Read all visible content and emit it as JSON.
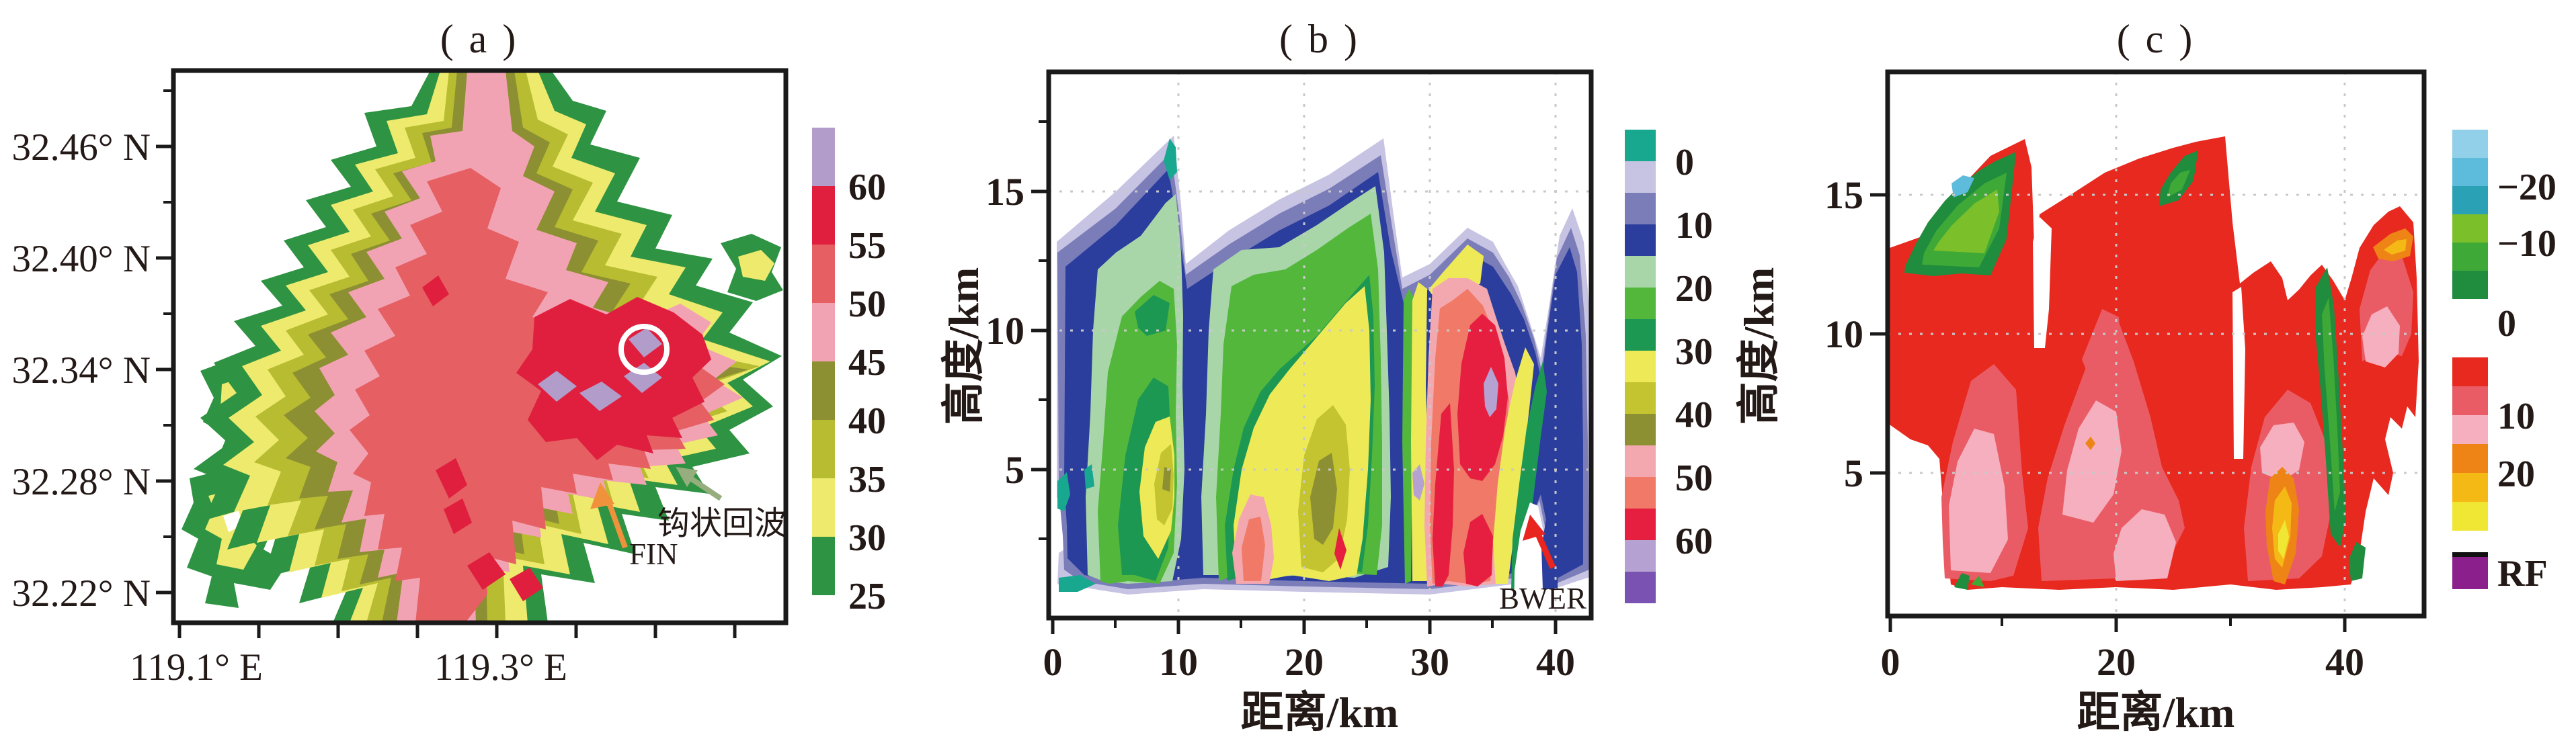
{
  "panels": {
    "a": {
      "title": "( a )",
      "y_ticks": [
        "32.46° N",
        "32.40° N",
        "32.34° N",
        "32.28° N",
        "32.22° N"
      ],
      "x_ticks": [
        "119.1° E",
        "119.3° E"
      ],
      "colorbar": {
        "labels": [
          "60",
          "55",
          "50",
          "45",
          "40",
          "35",
          "30",
          "25"
        ],
        "colors": [
          "#b29cca",
          "#e01f3e",
          "#e55f63",
          "#f2a3b3",
          "#8d8f33",
          "#b8bc30",
          "#eeea6e",
          "#2e9342"
        ]
      },
      "annotations": {
        "fin": "FIN",
        "hook_echo": "钩状回波",
        "fin_arrow_color": "#f0923c",
        "hook_arrow_color": "#96ad7d",
        "circle_color": "#ffffff"
      }
    },
    "b": {
      "title": "( b )",
      "y_label": "高度/km",
      "x_label": "距离/km",
      "y_ticks": [
        "15",
        "10",
        "5"
      ],
      "x_ticks": [
        "0",
        "10",
        "20",
        "30",
        "40"
      ],
      "colorbar": {
        "labels": [
          "0",
          "10",
          "20",
          "30",
          "40",
          "50",
          "60"
        ],
        "colors": [
          "#18a78f",
          "#c7c3e2",
          "#7b7db9",
          "#2b3d9d",
          "#a9d6a9",
          "#53b73c",
          "#1d9853",
          "#eeea57",
          "#c3c430",
          "#8d8f33",
          "#f3a8b0",
          "#f07a67",
          "#e61f40",
          "#b5a2d2",
          "#7a52b2"
        ]
      },
      "annotations": {
        "bwer": "BWER",
        "bwer_arrow_color": "#e8251f"
      }
    },
    "c": {
      "title": "( c )",
      "y_label": "高度/km",
      "x_label": "距离/km",
      "y_ticks": [
        "15",
        "10",
        "5"
      ],
      "x_ticks": [
        "0",
        "20",
        "40"
      ],
      "colorbar_negative": {
        "labels": [
          "−20",
          "−10",
          "0"
        ],
        "colors": [
          "#92cfe8",
          "#5dbbdc",
          "#2aa1b4",
          "#7bbf2b",
          "#3ea936",
          "#1f8c3e"
        ]
      },
      "colorbar_positive": {
        "labels": [
          "10",
          "20"
        ],
        "colors": [
          "#e8291f",
          "#ea5c65",
          "#f5afbe",
          "#ef8416",
          "#f5b916",
          "#f0e634"
        ]
      },
      "colorbar_rf": {
        "label": "RF",
        "colors": [
          "#8b1f8b"
        ]
      }
    }
  },
  "chart_data": [
    {
      "panel": "a",
      "type": "heatmap",
      "title": "( a )",
      "description": "Plan-view radar reflectivity contour map",
      "x_tick_labels": [
        "119.1°E",
        "119.3°E"
      ],
      "x_range_deg_E": [
        119.1,
        119.45
      ],
      "y_tick_labels": [
        "32.46°N",
        "32.40°N",
        "32.34°N",
        "32.28°N",
        "32.22°N"
      ],
      "y_range_deg_N": [
        32.2,
        32.5
      ],
      "color_levels": [
        25,
        30,
        35,
        40,
        45,
        50,
        55,
        60
      ],
      "legend_position": "right",
      "grid": false,
      "annotations": [
        "FIN marked by orange arrow near 119.33°E 32.26°N",
        "钩状回波 (hook echo) marked by olive-green arrow near 119.38°E 32.28°N",
        "white circle around >60 core near 119.36°E 32.35°N"
      ],
      "features": [
        "broad 25–45 echo mass with vertically elongated core",
        "55–60 cores east-center around 32.32–32.35°N and near the southern edge",
        ">60 (lavender) patches embedded in eastern red core",
        "scattered 25–35 cells on the western flank"
      ]
    },
    {
      "panel": "b",
      "type": "heatmap",
      "title": "( b )",
      "description": "Vertical cross-section of reflectivity",
      "xlabel": "距离/km",
      "ylabel": "高度/km",
      "x_ticks": [
        0,
        10,
        20,
        30,
        40
      ],
      "x_range_km": [
        0,
        43
      ],
      "y_ticks": [
        5,
        10,
        15
      ],
      "y_range_km": [
        0,
        18
      ],
      "color_levels": [
        -5,
        0,
        5,
        10,
        15,
        20,
        25,
        30,
        35,
        40,
        45,
        50,
        55,
        60,
        65,
        70
      ],
      "legend_position": "right",
      "grid": "dotted",
      "annotations": [
        "BWER marked by red arrow near x=38 km below 4 km"
      ],
      "features": [
        "three sawtooth echo towers with tops near 17 km at x≈10 and x≈27 km",
        "50–60 core between x=28–38 km from 1–11 km height",
        ">60 (lavender) spots near (35 km, 8 km) and (29 km, 4.5 km)",
        "bounded weak echo region notch at x≈37–39 km below 4 km"
      ]
    },
    {
      "panel": "c",
      "type": "heatmap",
      "title": "( c )",
      "description": "Vertical cross-section of radial velocity",
      "xlabel": "距离/km",
      "ylabel": "高度/km",
      "x_ticks": [
        0,
        20,
        40
      ],
      "x_range_km": [
        0,
        47
      ],
      "y_ticks": [
        5,
        10,
        15
      ],
      "y_range_km": [
        0,
        18
      ],
      "color_levels_negative": [
        -30,
        -25,
        -20,
        -15,
        -10,
        -5,
        0
      ],
      "color_levels_positive": [
        0,
        5,
        10,
        15,
        20,
        25,
        30
      ],
      "special_legend": "RF (purple)",
      "legend_position": "right",
      "grid": "dotted",
      "features": [
        "field dominated by 0–10 positive velocities (red/salmon) with 10–15 (pink) pockets at low-mid levels",
        "negative-velocity (green, with small −20 cyan spot) pocket aloft at x≈2–11 km, 12–16 km height",
        "small negative pocket near x≈24–27 km at 15–17 km",
        "curved green negative streak at x≈38–40 km from 1–12 km",
        "15–30 (orange/yellow) patch at x≈33–36 km below 5 km and near x≈43–46 km at 13–14.5 km"
      ]
    }
  ]
}
